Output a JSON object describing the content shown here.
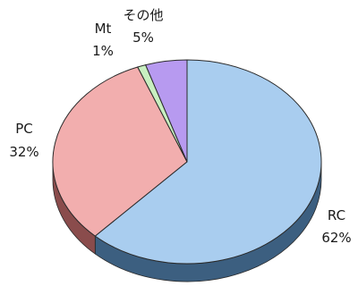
{
  "chart_data": {
    "type": "pie",
    "style": "3d",
    "slices": [
      {
        "name": "RC",
        "value": 62,
        "label": "RC",
        "pct_label": "62%",
        "color": "#a9cdef",
        "side_color": "#3c5f80"
      },
      {
        "name": "PC",
        "value": 32,
        "label": "PC",
        "pct_label": "32%",
        "color": "#f2aeae",
        "side_color": "#8a4c4c"
      },
      {
        "name": "Mt",
        "value": 1,
        "label": "Mt",
        "pct_label": "1%",
        "color": "#c8efc0",
        "side_color": "#6f8e69"
      },
      {
        "name": "その他",
        "value": 5,
        "label": "その他",
        "pct_label": "5%",
        "color": "#b79af0",
        "side_color": "#5c4b8a"
      }
    ]
  }
}
